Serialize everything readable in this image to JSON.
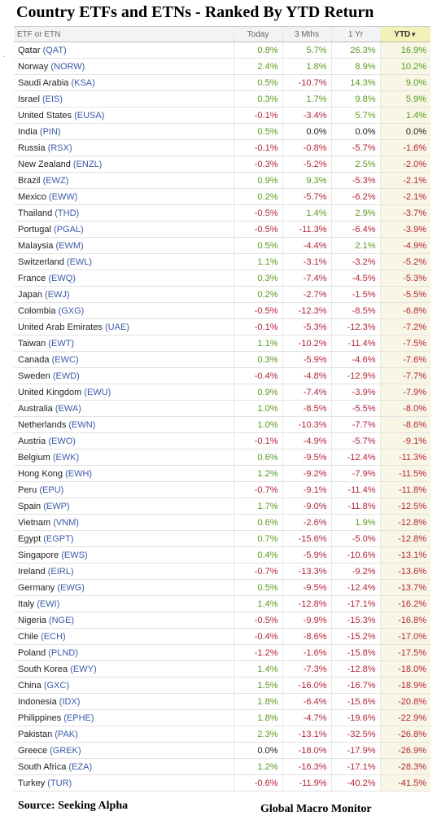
{
  "title": "Country ETFs and ETNs - Ranked By YTD Return",
  "headers": {
    "name": "ETF or ETN",
    "today": "Today",
    "three_mths": "3 Mths",
    "one_yr": "1 Yr",
    "ytd": "YTD"
  },
  "sort_icon": "triangle-down-icon",
  "rows": [
    {
      "country": "Qatar",
      "ticker": "(QAT)",
      "today": "0.8%",
      "m3": "5.7%",
      "y1": "26.3%",
      "ytd": "16.9%"
    },
    {
      "country": "Norway",
      "ticker": "(NORW)",
      "today": "2.4%",
      "m3": "1.8%",
      "y1": "8.9%",
      "ytd": "10.2%"
    },
    {
      "country": "Saudi Arabia",
      "ticker": "(KSA)",
      "today": "0.5%",
      "m3": "-10.7%",
      "y1": "14.3%",
      "ytd": "9.0%"
    },
    {
      "country": "Israel",
      "ticker": "(EIS)",
      "today": "0.3%",
      "m3": "1.7%",
      "y1": "9.8%",
      "ytd": "5.9%"
    },
    {
      "country": "United States",
      "ticker": "(EUSA)",
      "today": "-0.1%",
      "m3": "-3.4%",
      "y1": "5.7%",
      "ytd": "1.4%"
    },
    {
      "country": "India",
      "ticker": "(PIN)",
      "today": "0.5%",
      "m3": "0.0%",
      "y1": "0.0%",
      "ytd": "0.0%"
    },
    {
      "country": "Russia",
      "ticker": "(RSX)",
      "today": "-0.1%",
      "m3": "-0.8%",
      "y1": "-5.7%",
      "ytd": "-1.6%"
    },
    {
      "country": "New Zealand",
      "ticker": "(ENZL)",
      "today": "-0.3%",
      "m3": "-5.2%",
      "y1": "2.5%",
      "ytd": "-2.0%"
    },
    {
      "country": "Brazil",
      "ticker": "(EWZ)",
      "today": "0.9%",
      "m3": "9.3%",
      "y1": "-5.3%",
      "ytd": "-2.1%"
    },
    {
      "country": "Mexico",
      "ticker": "(EWW)",
      "today": "0.2%",
      "m3": "-5.7%",
      "y1": "-6.2%",
      "ytd": "-2.1%"
    },
    {
      "country": "Thailand",
      "ticker": "(THD)",
      "today": "-0.5%",
      "m3": "1.4%",
      "y1": "2.9%",
      "ytd": "-3.7%"
    },
    {
      "country": "Portugal",
      "ticker": "(PGAL)",
      "today": "-0.5%",
      "m3": "-11.3%",
      "y1": "-6.4%",
      "ytd": "-3.9%"
    },
    {
      "country": "Malaysia",
      "ticker": "(EWM)",
      "today": "0.5%",
      "m3": "-4.4%",
      "y1": "2.1%",
      "ytd": "-4.9%"
    },
    {
      "country": "Switzerland",
      "ticker": "(EWL)",
      "today": "1.1%",
      "m3": "-3.1%",
      "y1": "-3.2%",
      "ytd": "-5.2%"
    },
    {
      "country": "France",
      "ticker": "(EWQ)",
      "today": "0.3%",
      "m3": "-7.4%",
      "y1": "-4.5%",
      "ytd": "-5.3%"
    },
    {
      "country": "Japan",
      "ticker": "(EWJ)",
      "today": "0.2%",
      "m3": "-2.7%",
      "y1": "-1.5%",
      "ytd": "-5.5%"
    },
    {
      "country": "Colombia",
      "ticker": "(GXG)",
      "today": "-0.5%",
      "m3": "-12.3%",
      "y1": "-8.5%",
      "ytd": "-6.8%"
    },
    {
      "country": "United Arab Emirates",
      "ticker": "(UAE)",
      "today": "-0.1%",
      "m3": "-5.3%",
      "y1": "-12.3%",
      "ytd": "-7.2%"
    },
    {
      "country": "Taiwan",
      "ticker": "(EWT)",
      "today": "1.1%",
      "m3": "-10.2%",
      "y1": "-11.4%",
      "ytd": "-7.5%"
    },
    {
      "country": "Canada",
      "ticker": "(EWC)",
      "today": "0.3%",
      "m3": "-5.9%",
      "y1": "-4.6%",
      "ytd": "-7.6%"
    },
    {
      "country": "Sweden",
      "ticker": "(EWD)",
      "today": "-0.4%",
      "m3": "-4.8%",
      "y1": "-12.9%",
      "ytd": "-7.7%"
    },
    {
      "country": "United Kingdom",
      "ticker": "(EWU)",
      "today": "0.9%",
      "m3": "-7.4%",
      "y1": "-3.9%",
      "ytd": "-7.9%"
    },
    {
      "country": "Australia",
      "ticker": "(EWA)",
      "today": "1.0%",
      "m3": "-8.5%",
      "y1": "-5.5%",
      "ytd": "-8.0%"
    },
    {
      "country": "Netherlands",
      "ticker": "(EWN)",
      "today": "1.0%",
      "m3": "-10.3%",
      "y1": "-7.7%",
      "ytd": "-8.6%"
    },
    {
      "country": "Austria",
      "ticker": "(EWO)",
      "today": "-0.1%",
      "m3": "-4.9%",
      "y1": "-5.7%",
      "ytd": "-9.1%"
    },
    {
      "country": "Belgium",
      "ticker": "(EWK)",
      "today": "0.6%",
      "m3": "-9.5%",
      "y1": "-12.4%",
      "ytd": "-11.3%"
    },
    {
      "country": "Hong Kong",
      "ticker": "(EWH)",
      "today": "1.2%",
      "m3": "-9.2%",
      "y1": "-7.9%",
      "ytd": "-11.5%"
    },
    {
      "country": "Peru",
      "ticker": "(EPU)",
      "today": "-0.7%",
      "m3": "-9.1%",
      "y1": "-11.4%",
      "ytd": "-11.8%"
    },
    {
      "country": "Spain",
      "ticker": "(EWP)",
      "today": "1.7%",
      "m3": "-9.0%",
      "y1": "-11.8%",
      "ytd": "-12.5%"
    },
    {
      "country": "Vietnam",
      "ticker": "(VNM)",
      "today": "0.6%",
      "m3": "-2.6%",
      "y1": "1.9%",
      "ytd": "-12.8%"
    },
    {
      "country": "Egypt",
      "ticker": "(EGPT)",
      "today": "0.7%",
      "m3": "-15.6%",
      "y1": "-5.0%",
      "ytd": "-12.8%"
    },
    {
      "country": "Singapore",
      "ticker": "(EWS)",
      "today": "0.4%",
      "m3": "-5.9%",
      "y1": "-10.6%",
      "ytd": "-13.1%"
    },
    {
      "country": "Ireland",
      "ticker": "(EIRL)",
      "today": "-0.7%",
      "m3": "-13.3%",
      "y1": "-9.2%",
      "ytd": "-13.6%"
    },
    {
      "country": "Germany",
      "ticker": "(EWG)",
      "today": "0.5%",
      "m3": "-9.5%",
      "y1": "-12.4%",
      "ytd": "-13.7%"
    },
    {
      "country": "Italy",
      "ticker": "(EWI)",
      "today": "1.4%",
      "m3": "-12.8%",
      "y1": "-17.1%",
      "ytd": "-16.2%"
    },
    {
      "country": "Nigeria",
      "ticker": "(NGE)",
      "today": "-0.5%",
      "m3": "-9.9%",
      "y1": "-15.3%",
      "ytd": "-16.8%"
    },
    {
      "country": "Chile",
      "ticker": "(ECH)",
      "today": "-0.4%",
      "m3": "-8.6%",
      "y1": "-15.2%",
      "ytd": "-17.0%"
    },
    {
      "country": "Poland",
      "ticker": "(PLND)",
      "today": "-1.2%",
      "m3": "-1.6%",
      "y1": "-15.8%",
      "ytd": "-17.5%"
    },
    {
      "country": "South Korea",
      "ticker": "(EWY)",
      "today": "1.4%",
      "m3": "-7.3%",
      "y1": "-12.8%",
      "ytd": "-18.0%"
    },
    {
      "country": "China",
      "ticker": "(GXC)",
      "today": "1.5%",
      "m3": "-16.0%",
      "y1": "-16.7%",
      "ytd": "-18.9%"
    },
    {
      "country": "Indonesia",
      "ticker": "(IDX)",
      "today": "1.8%",
      "m3": "-6.4%",
      "y1": "-15.6%",
      "ytd": "-20.8%"
    },
    {
      "country": "Philippines",
      "ticker": "(EPHE)",
      "today": "1.8%",
      "m3": "-4.7%",
      "y1": "-19.6%",
      "ytd": "-22.9%"
    },
    {
      "country": "Pakistan",
      "ticker": "(PAK)",
      "today": "2.3%",
      "m3": "-13.1%",
      "y1": "-32.5%",
      "ytd": "-26.8%"
    },
    {
      "country": "Greece",
      "ticker": "(GREK)",
      "today": "0.0%",
      "m3": "-18.0%",
      "y1": "-17.9%",
      "ytd": "-26.9%"
    },
    {
      "country": "South Africa",
      "ticker": "(EZA)",
      "today": "1.2%",
      "m3": "-16.3%",
      "y1": "-17.1%",
      "ytd": "-28.3%"
    },
    {
      "country": "Turkey",
      "ticker": "(TUR)",
      "today": "-0.6%",
      "m3": "-11.9%",
      "y1": "-40.2%",
      "ytd": "-41.5%"
    }
  ],
  "footer": {
    "source": "Source:  Seeking Alpha",
    "brand": "Global Macro Monitor"
  },
  "colors": {
    "positive": "#5a9a1e",
    "negative": "#b3253a",
    "ticker": "#3a5aa8",
    "ytd_header": "#f3f1b8"
  }
}
